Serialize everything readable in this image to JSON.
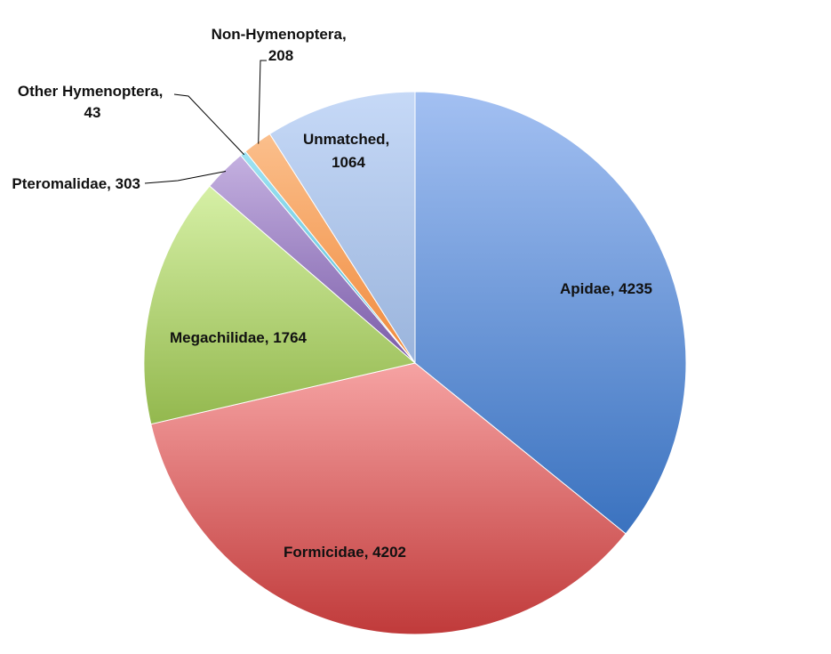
{
  "chart_data": {
    "type": "pie",
    "start_angle_deg": 0,
    "direction": "clockwise",
    "slices": [
      {
        "label": "Apidae",
        "value_text": "4235",
        "value": 4235,
        "color_top": "#a3c0f2",
        "color_bottom": "#3a72bf"
      },
      {
        "label": "Formicidae",
        "value_text": "4202",
        "value": 4202,
        "color_top": "#f6a3a3",
        "color_bottom": "#c03a3a"
      },
      {
        "label": "Megachilidae",
        "value_text": "1764",
        "value": 1764,
        "color_top": "#d6f0a6",
        "color_bottom": "#93b84e"
      },
      {
        "label": "Pteromalidae",
        "value_text": "303",
        "value": 303,
        "color_top": "#c4b0e0",
        "color_bottom": "#7a5ca8"
      },
      {
        "label": "Other Hymenoptera",
        "value_text": "43",
        "value": 43,
        "color_top": "#9fe3f2",
        "color_bottom": "#4fbad6"
      },
      {
        "label": "Non-Hymenoptera",
        "value_text": "208",
        "value": 208,
        "color_top": "#fbbf8c",
        "color_bottom": "#f08a3c"
      },
      {
        "label": "Unmatched",
        "value_text": "1064",
        "value": 1064,
        "color_top": "#c6d9f7",
        "color_bottom": "#9ab4dc"
      }
    ]
  }
}
